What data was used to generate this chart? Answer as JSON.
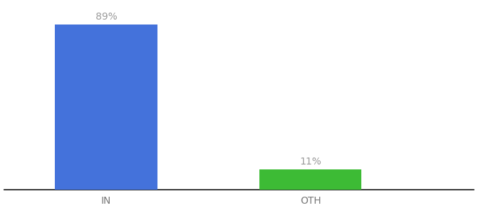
{
  "categories": [
    "IN",
    "OTH"
  ],
  "values": [
    89,
    11
  ],
  "bar_colors": [
    "#4472db",
    "#3dbb35"
  ],
  "label_texts": [
    "89%",
    "11%"
  ],
  "background_color": "#ffffff",
  "ylim": [
    0,
    100
  ],
  "bar_width": 0.5,
  "xlabel_fontsize": 10,
  "label_fontsize": 10,
  "label_color": "#999999",
  "axis_line_color": "#111111",
  "tick_color": "#777777",
  "x_positions": [
    1,
    2
  ],
  "xlim": [
    0.5,
    2.8
  ]
}
